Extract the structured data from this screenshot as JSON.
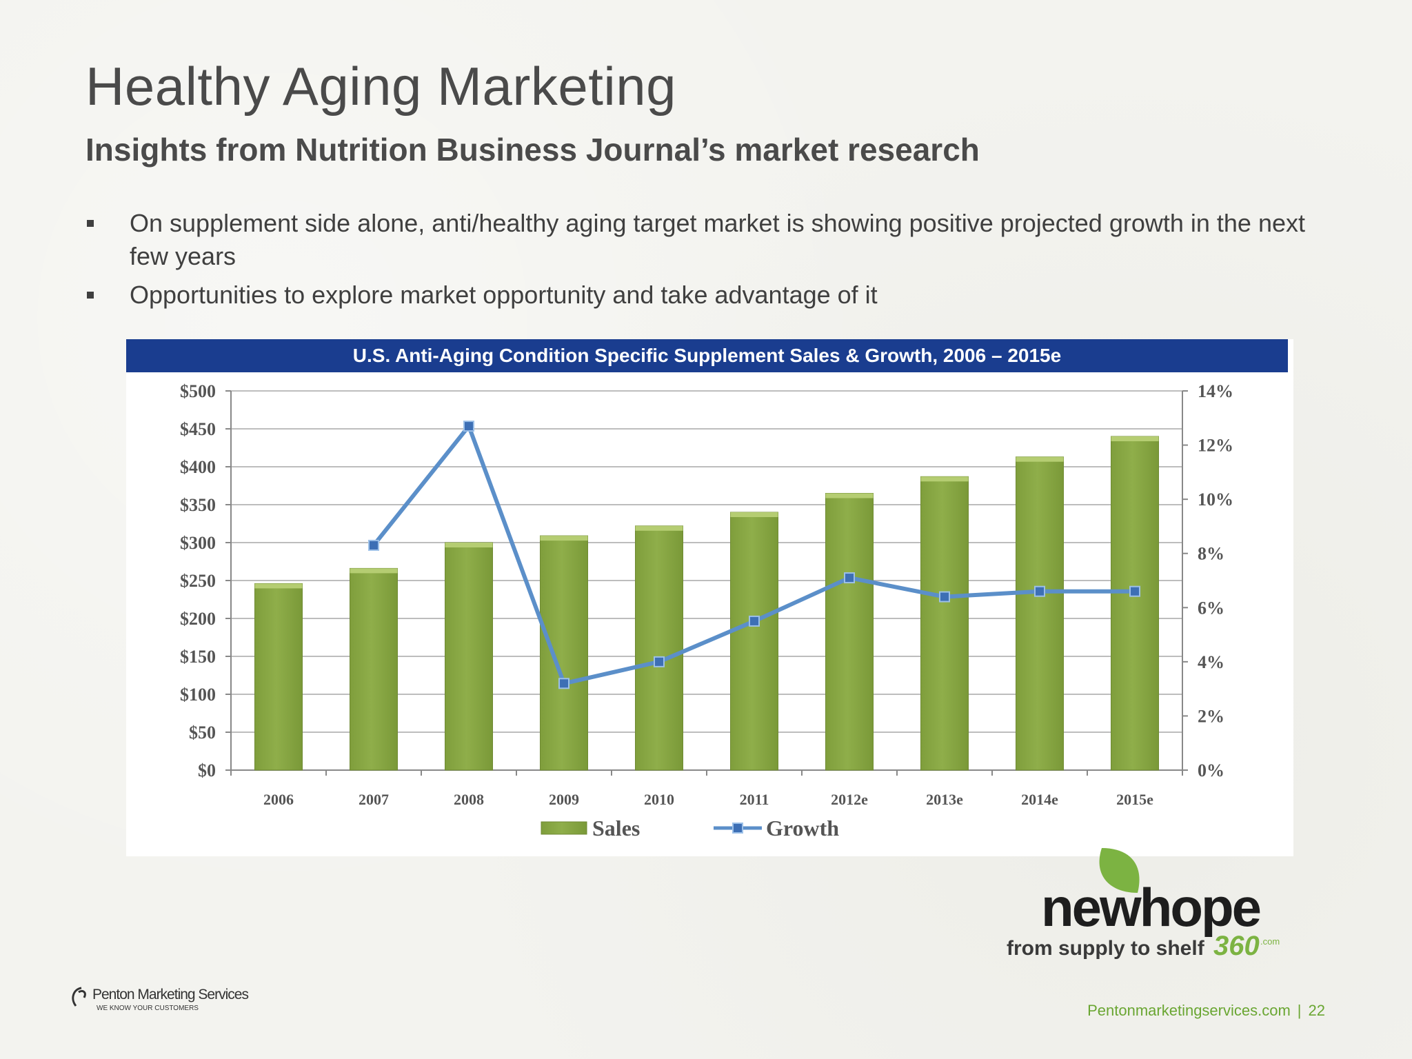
{
  "slide": {
    "title": "Healthy Aging Marketing",
    "subtitle": "Insights from Nutrition Business Journal’s market research",
    "bullets": [
      "On supplement side alone, anti/healthy aging target market is showing positive projected growth in the next few years",
      "Opportunities to explore market opportunity and take advantage of it"
    ],
    "footer": {
      "site": "Pentonmarketingservices.com",
      "separator": "|",
      "page": "22"
    }
  },
  "logos": {
    "newhope": {
      "main": "newhope",
      "tagline": "from supply to shelf",
      "number": "360",
      "suffix": ".com"
    },
    "penton": {
      "name": "Penton Marketing Services",
      "tagline": "WE KNOW YOUR CUSTOMERS"
    }
  },
  "colors": {
    "header_bg": "#1a3d8f",
    "bar_fill": "#8fae4a",
    "bar_top": "#b5cd72",
    "line": "#5b8fc9",
    "marker": "#3d6fb5",
    "footer_green": "#6aa632",
    "leaf_green": "#7cb342"
  },
  "chart_data": {
    "type": "bar",
    "title": "U.S. Anti-Aging Condition Specific Supplement Sales & Growth, 2006 – 2015e",
    "categories": [
      "2006",
      "2007",
      "2008",
      "2009",
      "2010",
      "2011",
      "2012e",
      "2013e",
      "2014e",
      "2015e"
    ],
    "series": [
      {
        "name": "Sales",
        "type": "bar",
        "axis": "left",
        "values": [
          246,
          266,
          300,
          309,
          322,
          340,
          365,
          387,
          413,
          440
        ]
      },
      {
        "name": "Growth",
        "type": "line",
        "axis": "right",
        "values": [
          null,
          8.3,
          12.7,
          3.2,
          4.0,
          5.5,
          7.1,
          6.4,
          6.6,
          6.6
        ]
      }
    ],
    "y_left": {
      "min": 0,
      "max": 500,
      "step": 50,
      "ticks": [
        "$0",
        "$50",
        "$100",
        "$150",
        "$200",
        "$250",
        "$300",
        "$350",
        "$400",
        "$450",
        "$500"
      ]
    },
    "y_right": {
      "min": 0,
      "max": 14,
      "step": 2,
      "ticks": [
        "0%",
        "2%",
        "4%",
        "6%",
        "8%",
        "10%",
        "12%",
        "14%"
      ]
    },
    "grid": true,
    "legend": {
      "position": "bottom",
      "items": [
        "Sales",
        "Growth"
      ]
    }
  }
}
